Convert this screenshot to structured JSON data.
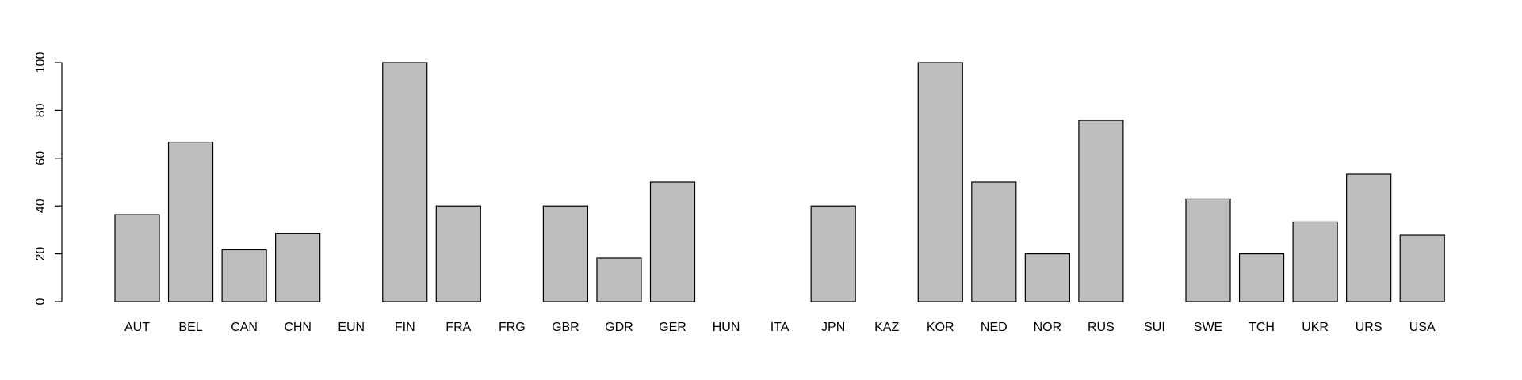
{
  "chart_data": {
    "type": "bar",
    "title": "",
    "xlabel": "",
    "ylabel": "",
    "ylim": [
      0,
      100
    ],
    "yticks": [
      0,
      20,
      40,
      60,
      80,
      100
    ],
    "ytick_labels": [
      "0",
      "20",
      "40",
      "60",
      "80",
      "100"
    ],
    "grid": false,
    "categories": [
      "AUT",
      "BEL",
      "CAN",
      "CHN",
      "EUN",
      "FIN",
      "FRA",
      "FRG",
      "GBR",
      "GDR",
      "GER",
      "HUN",
      "ITA",
      "JPN",
      "KAZ",
      "KOR",
      "NED",
      "NOR",
      "RUS",
      "SUI",
      "SWE",
      "TCH",
      "UKR",
      "URS",
      "USA"
    ],
    "values": [
      36.4,
      66.7,
      21.7,
      28.6,
      0,
      100,
      40,
      0,
      40,
      18.2,
      50,
      0,
      0,
      40,
      0,
      100,
      50,
      20,
      75.8,
      0,
      42.9,
      20,
      33.3,
      53.3,
      27.8
    ],
    "bar_color": "#bebebe",
    "edge_color": "#000000"
  }
}
